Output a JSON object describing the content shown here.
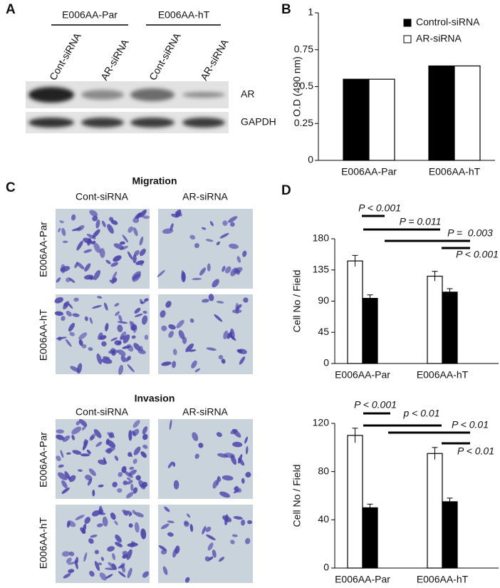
{
  "panels": {
    "a": {
      "letter": "A",
      "groups": [
        "E006AA-Par",
        "E006AA-hT"
      ],
      "lanes": [
        "Cont-siRNA",
        "AR-siRNA",
        "Cont-siRNA",
        "AR-siRNA"
      ],
      "rows": [
        "AR",
        "GAPDH"
      ]
    },
    "c": {
      "letter": "C",
      "blocks": [
        {
          "title": "Migration",
          "columns": [
            "Cont-siRNA",
            "AR-siRNA"
          ],
          "rows": [
            "E006AA-Par",
            "E006AA-hT"
          ]
        },
        {
          "title": "Invasion",
          "columns": [
            "Cont-siRNA",
            "AR-siRNA"
          ],
          "rows": [
            "E006AA-Par",
            "E006AA-hT"
          ]
        }
      ]
    }
  },
  "chart_data": [
    {
      "type": "bar",
      "panel": "B",
      "ylabel": "O.D (490 nm)",
      "categories": [
        "E006AA-Par",
        "E006AA-hT"
      ],
      "series": [
        {
          "name": "Control-siRNA",
          "color": "#000000",
          "values": [
            0.55,
            0.64
          ]
        },
        {
          "name": "AR-siRNA",
          "color": "#ffffff",
          "values": [
            0.55,
            0.64
          ]
        }
      ],
      "ylim": [
        0,
        1
      ],
      "yticks": [
        0,
        0.25,
        0.5,
        0.75,
        1
      ],
      "legend": "top-right"
    },
    {
      "type": "bar",
      "panel": "D",
      "ylabel": "Cell No / Field",
      "categories": [
        "E006AA-Par",
        "E006AA-hT"
      ],
      "series": [
        {
          "color": "#ffffff",
          "values": [
            148,
            126
          ],
          "errors": [
            8,
            7
          ]
        },
        {
          "color": "#000000",
          "values": [
            94,
            103
          ],
          "errors": [
            5,
            5
          ]
        }
      ],
      "ylim": [
        0,
        180
      ],
      "yticks": [
        0,
        45,
        90,
        135,
        180
      ],
      "annotations": [
        "P < 0.001",
        "P = 0.011",
        "P =  0.003",
        "P < 0.001"
      ]
    },
    {
      "type": "bar",
      "ylabel": "Cell No / Field",
      "categories": [
        "E006AA-Par",
        "E006AA-hT"
      ],
      "series": [
        {
          "color": "#ffffff",
          "values": [
            110,
            95
          ],
          "errors": [
            6,
            5
          ]
        },
        {
          "color": "#000000",
          "values": [
            50,
            55
          ],
          "errors": [
            3,
            3
          ]
        }
      ],
      "ylim": [
        0,
        120
      ],
      "yticks": [
        0,
        40,
        80,
        120
      ],
      "annotations": [
        "P < 0.001",
        "p < 0.01",
        "P < 0.01",
        "P < 0.01"
      ]
    }
  ]
}
